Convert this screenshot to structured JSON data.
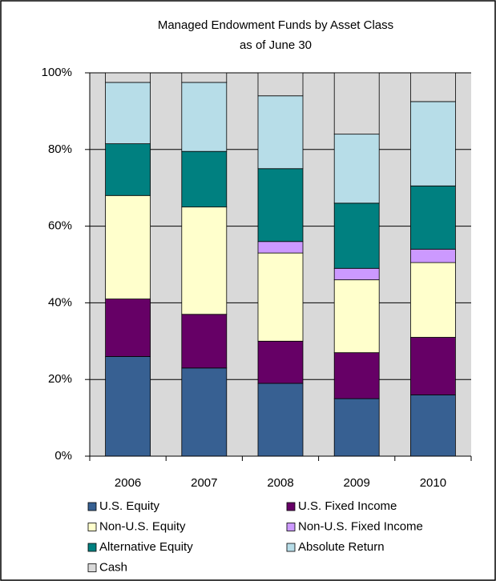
{
  "chart_data": {
    "type": "stacked_bar",
    "title": "Managed Endowment Funds by Asset Class",
    "subtitle": "as of June 30",
    "categories": [
      "2006",
      "2007",
      "2008",
      "2009",
      "2010"
    ],
    "series": [
      {
        "name": "U.S. Equity",
        "color": "#376092",
        "values": [
          26,
          23,
          19,
          15,
          16
        ]
      },
      {
        "name": "U.S. Fixed Income",
        "color": "#660066",
        "values": [
          15,
          14,
          11,
          12,
          15
        ]
      },
      {
        "name": "Non-U.S. Equity",
        "color": "#ffffcc",
        "values": [
          27,
          28,
          23,
          19,
          19.5
        ]
      },
      {
        "name": "Non-U.S. Fixed Income",
        "color": "#cc99ff",
        "values": [
          0,
          0,
          3,
          3,
          3.5
        ]
      },
      {
        "name": "Alternative Equity",
        "color": "#008080",
        "values": [
          13.5,
          14.5,
          19,
          17,
          16.5
        ]
      },
      {
        "name": "Absolute Return",
        "color": "#b7dde8",
        "values": [
          16,
          18,
          19,
          18,
          22
        ]
      },
      {
        "name": "Cash",
        "color": "#d9d9d9",
        "values": [
          2.5,
          2.5,
          6,
          16,
          7.5
        ]
      }
    ],
    "ylim": [
      0,
      100
    ],
    "yticks": [
      {
        "value": 0,
        "label": "0%"
      },
      {
        "value": 20,
        "label": "20%"
      },
      {
        "value": 40,
        "label": "40%"
      },
      {
        "value": 60,
        "label": "60%"
      },
      {
        "value": 80,
        "label": "80%"
      },
      {
        "value": 100,
        "label": "100%"
      }
    ],
    "grid": true,
    "legend": "bottom"
  }
}
